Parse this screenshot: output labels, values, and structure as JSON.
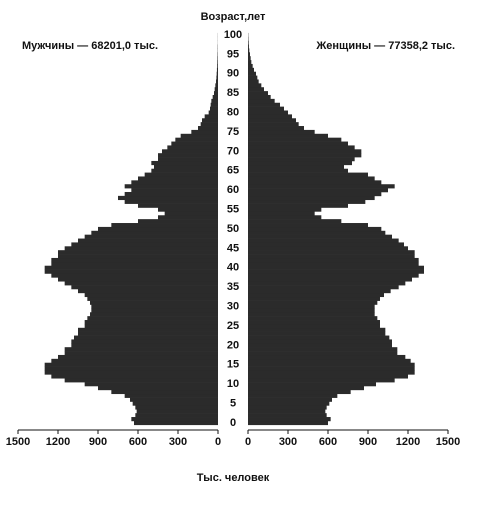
{
  "chart_data": {
    "type": "pyramid",
    "title": "Возраст,лет",
    "xlabel": "Тыс. человек",
    "categories": [
      "0",
      null,
      null,
      null,
      null,
      "5",
      null,
      null,
      null,
      null,
      "10",
      null,
      null,
      null,
      null,
      "15",
      null,
      null,
      null,
      null,
      "20",
      null,
      null,
      null,
      null,
      "25",
      null,
      null,
      null,
      null,
      "30",
      null,
      null,
      null,
      null,
      "35",
      null,
      null,
      null,
      null,
      "40",
      null,
      null,
      null,
      null,
      "45",
      null,
      null,
      null,
      null,
      "50",
      null,
      null,
      null,
      null,
      "55",
      null,
      null,
      null,
      null,
      "60",
      null,
      null,
      null,
      null,
      "65",
      null,
      null,
      null,
      null,
      "70",
      null,
      null,
      null,
      null,
      "75",
      null,
      null,
      null,
      null,
      "80",
      null,
      null,
      null,
      null,
      "85",
      null,
      null,
      null,
      null,
      "90",
      null,
      null,
      null,
      null,
      "95",
      null,
      null,
      null,
      null,
      "100"
    ],
    "series": [
      {
        "name": "Мужчины — 68201,0 тыс.",
        "color": "#2b2b2b",
        "values": [
          630,
          650,
          620,
          610,
          620,
          640,
          660,
          700,
          800,
          900,
          1000,
          1150,
          1250,
          1300,
          1300,
          1300,
          1250,
          1200,
          1150,
          1150,
          1100,
          1100,
          1080,
          1050,
          1050,
          1000,
          1000,
          980,
          960,
          950,
          950,
          960,
          980,
          1000,
          1050,
          1100,
          1150,
          1200,
          1250,
          1300,
          1300,
          1250,
          1250,
          1200,
          1200,
          1150,
          1100,
          1050,
          1000,
          950,
          900,
          800,
          600,
          450,
          400,
          450,
          600,
          700,
          750,
          700,
          650,
          700,
          650,
          600,
          550,
          500,
          480,
          500,
          450,
          450,
          420,
          380,
          350,
          320,
          280,
          200,
          150,
          130,
          120,
          100,
          70,
          60,
          55,
          50,
          40,
          30,
          25,
          20,
          15,
          12,
          10,
          8,
          6,
          5,
          4,
          3,
          2,
          2,
          1,
          1,
          1
        ]
      },
      {
        "name": "Женщины — 77358,2 тыс.",
        "color": "#2b2b2b",
        "values": [
          600,
          620,
          590,
          580,
          590,
          610,
          630,
          670,
          770,
          870,
          960,
          1100,
          1200,
          1250,
          1250,
          1250,
          1220,
          1180,
          1120,
          1120,
          1080,
          1080,
          1060,
          1030,
          1030,
          990,
          990,
          970,
          950,
          950,
          950,
          970,
          990,
          1020,
          1070,
          1130,
          1180,
          1230,
          1280,
          1320,
          1320,
          1280,
          1280,
          1250,
          1250,
          1200,
          1170,
          1130,
          1080,
          1030,
          1000,
          900,
          700,
          550,
          500,
          550,
          750,
          880,
          950,
          1000,
          1050,
          1100,
          1000,
          950,
          900,
          750,
          720,
          780,
          800,
          850,
          850,
          800,
          750,
          700,
          600,
          500,
          420,
          380,
          360,
          330,
          300,
          270,
          240,
          200,
          170,
          150,
          120,
          100,
          80,
          70,
          60,
          45,
          35,
          25,
          20,
          15,
          10,
          7,
          5,
          3,
          2
        ]
      }
    ],
    "xlim": [
      0,
      1500
    ],
    "xticks": [
      0,
      300,
      600,
      900,
      1200,
      1500
    ]
  }
}
